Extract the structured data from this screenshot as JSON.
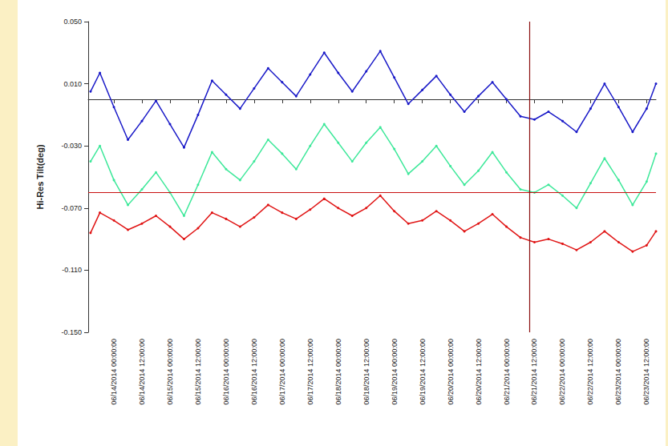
{
  "chart_data": {
    "type": "line",
    "y_label": "Hi-Res Tilt(deg)",
    "x": [
      "2014-06-13 14:00",
      "2014-06-13 18:00",
      "2014-06-14 00:00",
      "2014-06-14 06:00",
      "2014-06-14 12:00",
      "2014-06-14 18:00",
      "2014-06-15 00:00",
      "2014-06-15 06:00",
      "2014-06-15 12:00",
      "2014-06-15 18:00",
      "2014-06-16 00:00",
      "2014-06-16 06:00",
      "2014-06-16 12:00",
      "2014-06-16 18:00",
      "2014-06-17 00:00",
      "2014-06-17 06:00",
      "2014-06-17 12:00",
      "2014-06-17 18:00",
      "2014-06-18 00:00",
      "2014-06-18 06:00",
      "2014-06-18 12:00",
      "2014-06-18 18:00",
      "2014-06-19 00:00",
      "2014-06-19 06:00",
      "2014-06-19 12:00",
      "2014-06-19 18:00",
      "2014-06-20 00:00",
      "2014-06-20 06:00",
      "2014-06-20 12:00",
      "2014-06-20 18:00",
      "2014-06-21 00:00",
      "2014-06-21 06:00",
      "2014-06-21 12:00",
      "2014-06-21 18:00",
      "2014-06-22 00:00",
      "2014-06-22 06:00",
      "2014-06-22 12:00",
      "2014-06-22 18:00",
      "2014-06-23 00:00",
      "2014-06-23 06:00",
      "2014-06-23 12:00",
      "2014-06-23 16:00"
    ],
    "series": [
      {
        "color": "#1a1ac8",
        "marker": "circle",
        "line_style": "solid",
        "values": [
          0.005,
          0.017,
          -0.005,
          -0.026,
          -0.014,
          -0.001,
          -0.016,
          -0.031,
          -0.01,
          0.012,
          0.003,
          -0.006,
          0.007,
          0.02,
          0.011,
          0.002,
          0.016,
          0.03,
          0.017,
          0.005,
          0.018,
          0.031,
          0.014,
          -0.003,
          0.006,
          0.015,
          0.003,
          -0.008,
          0.002,
          0.011,
          0.0,
          -0.011,
          -0.013,
          -0.008,
          -0.014,
          -0.021,
          -0.006,
          0.01,
          -0.005,
          -0.021,
          -0.006,
          0.01
        ]
      },
      {
        "color": "#3ee89a",
        "marker": "circle",
        "line_style": "solid",
        "values": [
          -0.04,
          -0.03,
          -0.052,
          -0.068,
          -0.058,
          -0.047,
          -0.06,
          -0.075,
          -0.055,
          -0.034,
          -0.045,
          -0.052,
          -0.04,
          -0.026,
          -0.035,
          -0.045,
          -0.03,
          -0.016,
          -0.028,
          -0.04,
          -0.028,
          -0.018,
          -0.032,
          -0.048,
          -0.04,
          -0.03,
          -0.043,
          -0.055,
          -0.046,
          -0.034,
          -0.047,
          -0.058,
          -0.06,
          -0.055,
          -0.062,
          -0.07,
          -0.054,
          -0.038,
          -0.052,
          -0.068,
          -0.053,
          -0.035
        ]
      },
      {
        "color": "#e01414",
        "marker": "circle",
        "line_style": "solid",
        "values": [
          -0.086,
          -0.073,
          -0.078,
          -0.084,
          -0.08,
          -0.075,
          -0.082,
          -0.09,
          -0.083,
          -0.073,
          -0.077,
          -0.082,
          -0.076,
          -0.068,
          -0.073,
          -0.077,
          -0.071,
          -0.064,
          -0.07,
          -0.075,
          -0.07,
          -0.062,
          -0.072,
          -0.08,
          -0.078,
          -0.072,
          -0.078,
          -0.085,
          -0.08,
          -0.074,
          -0.082,
          -0.089,
          -0.092,
          -0.09,
          -0.093,
          -0.097,
          -0.092,
          -0.085,
          -0.092,
          -0.098,
          -0.094,
          -0.085
        ]
      }
    ],
    "hlines": [
      {
        "y": -0.061,
        "color": "#c81010"
      }
    ],
    "vlines": [
      {
        "x": "2014-06-21 10:00",
        "color": "#8b1010"
      }
    ],
    "xlim": [
      "2014-06-13 13:00",
      "2014-06-23 16:00"
    ],
    "xticks": [
      {
        "value": "2014-06-14 00:00",
        "label": "06/14/2014 00:00:00"
      },
      {
        "value": "2014-06-14 12:00",
        "label": "06/14/2014 12:00:00"
      },
      {
        "value": "2014-06-15 00:00",
        "label": "06/15/2014 00:00:00"
      },
      {
        "value": "2014-06-15 12:00",
        "label": "06/15/2014 12:00:00"
      },
      {
        "value": "2014-06-16 00:00",
        "label": "06/16/2014 00:00:00"
      },
      {
        "value": "2014-06-16 12:00",
        "label": "06/16/2014 12:00:00"
      },
      {
        "value": "2014-06-17 00:00",
        "label": "06/17/2014 00:00:00"
      },
      {
        "value": "2014-06-17 12:00",
        "label": "06/17/2014 12:00:00"
      },
      {
        "value": "2014-06-18 00:00",
        "label": "06/18/2014 00:00:00"
      },
      {
        "value": "2014-06-18 12:00",
        "label": "06/18/2014 12:00:00"
      },
      {
        "value": "2014-06-19 00:00",
        "label": "06/19/2014 00:00:00"
      },
      {
        "value": "2014-06-19 12:00",
        "label": "06/19/2014 12:00:00"
      },
      {
        "value": "2014-06-20 00:00",
        "label": "06/20/2014 00:00:00"
      },
      {
        "value": "2014-06-20 12:00",
        "label": "06/20/2014 12:00:00"
      },
      {
        "value": "2014-06-21 00:00",
        "label": "06/21/2014 00:00:00"
      },
      {
        "value": "2014-06-21 12:00",
        "label": "06/21/2014 12:00:00"
      },
      {
        "value": "2014-06-22 00:00",
        "label": "06/22/2014 00:00:00"
      },
      {
        "value": "2014-06-22 12:00",
        "label": "06/22/2014 12:00:00"
      },
      {
        "value": "2014-06-23 00:00",
        "label": "06/23/2014 00:00:00"
      },
      {
        "value": "2014-06-23 12:00",
        "label": "06/23/2014 12:00:00"
      }
    ],
    "ylim": [
      -0.15,
      0.05
    ],
    "yticks": [
      {
        "value": 0.05,
        "label": "0.050"
      },
      {
        "value": 0.01,
        "label": "0.010"
      },
      {
        "value": -0.03,
        "label": "-0.030"
      },
      {
        "value": -0.07,
        "label": "-0.070"
      },
      {
        "value": -0.11,
        "label": "-0.110"
      },
      {
        "value": -0.15,
        "label": "-0.150"
      }
    ],
    "grid": false
  }
}
